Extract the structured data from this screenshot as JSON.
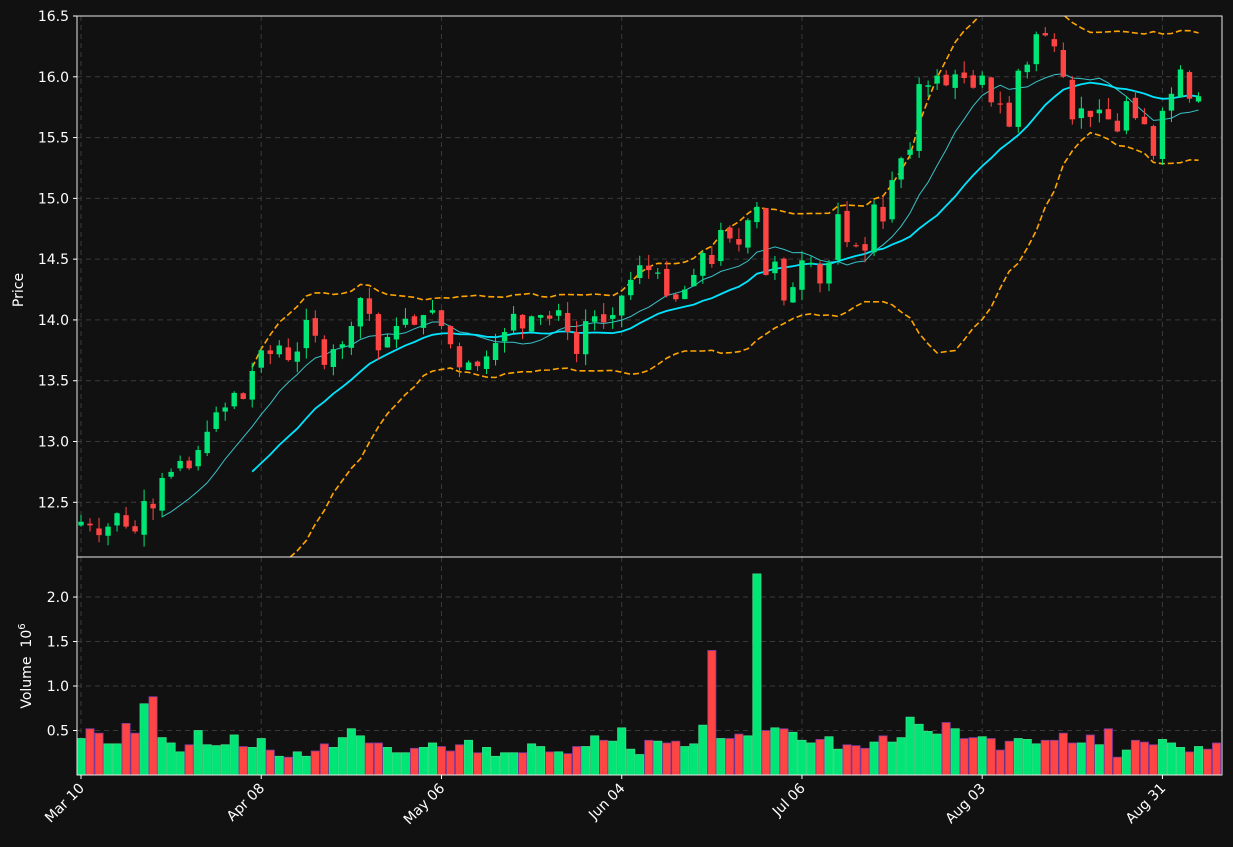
{
  "chart_data": [
    {
      "type": "candlestick",
      "panel": "price",
      "ylabel": "Price",
      "ylim": [
        12.05,
        16.5
      ],
      "yticks": [
        "12.5",
        "13.0",
        "13.5",
        "14.0",
        "14.5",
        "15.0",
        "15.5",
        "16.0",
        "16.5"
      ],
      "grid": true,
      "xtick_labels": [
        "Mar 10",
        "Apr 08",
        "May 06",
        "Jun 04",
        "Jul 06",
        "Aug 03",
        "Aug 31"
      ],
      "xtick_index": [
        0,
        20,
        40,
        60,
        80,
        100,
        120
      ],
      "close": [
        12.34,
        12.31,
        12.23,
        12.3,
        12.41,
        12.3,
        12.26,
        12.51,
        12.45,
        12.7,
        12.75,
        12.84,
        12.78,
        12.93,
        13.08,
        13.24,
        13.28,
        13.4,
        13.35,
        13.58,
        13.75,
        13.72,
        13.79,
        13.67,
        13.74,
        14.0,
        13.87,
        13.63,
        13.76,
        13.8,
        13.95,
        14.18,
        14.05,
        13.75,
        13.86,
        13.95,
        14.01,
        13.96,
        14.04,
        14.08,
        13.95,
        13.8,
        13.61,
        13.65,
        13.62,
        13.7,
        13.81,
        13.9,
        14.05,
        13.93,
        14.03,
        14.04,
        14.01,
        14.08,
        13.9,
        13.72,
        13.99,
        14.03,
        13.98,
        14.04,
        14.2,
        14.33,
        14.45,
        14.41,
        14.39,
        14.2,
        14.17,
        14.25,
        14.37,
        14.55,
        14.46,
        14.74,
        14.67,
        14.62,
        14.82,
        14.93,
        14.37,
        14.48,
        14.16,
        14.27,
        14.49,
        14.47,
        14.3,
        14.47,
        14.87,
        14.64,
        14.61,
        14.57,
        14.95,
        14.81,
        15.15,
        15.33,
        15.4,
        15.94,
        15.93,
        16.01,
        15.93,
        16.02,
        15.99,
        15.91,
        16.01,
        15.79,
        15.78,
        15.59,
        16.05,
        16.1,
        16.35,
        16.34,
        16.25,
        16.0,
        15.65,
        15.74,
        15.67,
        15.73,
        15.65,
        15.55,
        15.8,
        15.66,
        15.61,
        15.35,
        15.72,
        15.86,
        16.06,
        15.82,
        15.84
      ],
      "y_axis_unit": "price",
      "series": [
        {
          "name": "",
          "kind": "mav-fast",
          "color": "#40e0e8"
        },
        {
          "name": "",
          "kind": "mav-slow",
          "color": "#00e5ff"
        },
        {
          "name": "",
          "kind": "bollinger-upper",
          "color": "#ffa500"
        },
        {
          "name": "",
          "kind": "bollinger-lower",
          "color": "#ffa500"
        }
      ],
      "up_color": "#00e676",
      "down_color": "#ff4444"
    },
    {
      "type": "bar",
      "panel": "volume",
      "ylabel": "Volume",
      "ylabel_exponent": "10",
      "ylabel_power": "6",
      "ylim": [
        0.0,
        2.45
      ],
      "yticks": [
        "0.5",
        "1.0",
        "1.5",
        "2.0"
      ],
      "grid": true,
      "values": [
        0.41,
        0.52,
        0.47,
        0.35,
        0.35,
        0.58,
        0.47,
        0.8,
        0.88,
        0.42,
        0.36,
        0.26,
        0.34,
        0.5,
        0.34,
        0.33,
        0.34,
        0.45,
        0.32,
        0.31,
        0.41,
        0.28,
        0.21,
        0.2,
        0.26,
        0.21,
        0.27,
        0.35,
        0.31,
        0.42,
        0.52,
        0.44,
        0.36,
        0.36,
        0.31,
        0.25,
        0.25,
        0.3,
        0.31,
        0.36,
        0.32,
        0.27,
        0.34,
        0.39,
        0.25,
        0.31,
        0.21,
        0.25,
        0.25,
        0.25,
        0.35,
        0.32,
        0.26,
        0.26,
        0.24,
        0.32,
        0.32,
        0.44,
        0.39,
        0.38,
        0.53,
        0.29,
        0.23,
        0.39,
        0.38,
        0.36,
        0.38,
        0.32,
        0.35,
        0.56,
        1.4,
        0.41,
        0.41,
        0.46,
        0.44,
        2.26,
        0.5,
        0.53,
        0.52,
        0.48,
        0.39,
        0.36,
        0.4,
        0.43,
        0.29,
        0.34,
        0.33,
        0.3,
        0.37,
        0.44,
        0.37,
        0.42,
        0.65,
        0.57,
        0.49,
        0.46,
        0.59,
        0.52,
        0.41,
        0.42,
        0.43,
        0.41,
        0.28,
        0.38,
        0.41,
        0.4,
        0.35,
        0.39,
        0.39,
        0.47,
        0.36,
        0.36,
        0.45,
        0.34,
        0.52,
        0.2,
        0.28,
        0.39,
        0.37,
        0.34,
        0.4,
        0.36,
        0.31,
        0.26,
        0.32,
        0.29,
        0.36
      ]
    }
  ]
}
